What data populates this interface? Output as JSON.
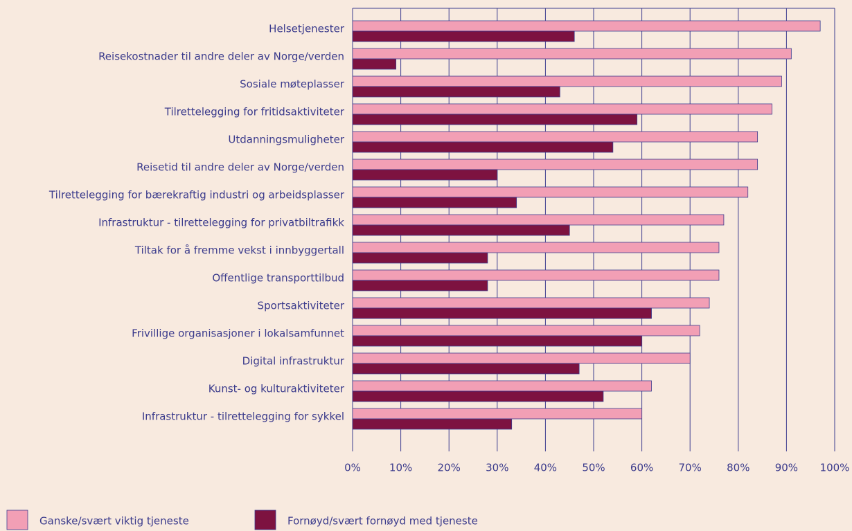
{
  "chart_data": {
    "type": "barh",
    "categories": [
      "Helsetjenester",
      "Reisekostnader til andre deler av Norge/verden",
      "Sosiale møteplasser",
      "Tilrettelegging for fritidsaktiviteter",
      "Utdanningsmuligheter",
      "Reisetid til andre deler av Norge/verden",
      "Tilrettelegging for bærekraftig industri og arbeidsplasser",
      "Infrastruktur - tilrettelegging for privatbiltrafikk",
      "Tiltak for å fremme vekst i innbyggertall",
      "Offentlige transporttilbud",
      "Sportsaktiviteter",
      "Frivillige organisasjoner i lokalsamfunnet",
      "Digital infrastruktur",
      "Kunst- og kulturaktiviteter",
      "Infrastruktur - tilrettelegging for sykkel"
    ],
    "series": [
      {
        "name": "Ganske/svært viktig tjeneste",
        "color": "#f29fb5",
        "values": [
          97,
          91,
          89,
          87,
          84,
          84,
          82,
          77,
          76,
          76,
          74,
          72,
          70,
          62,
          60
        ]
      },
      {
        "name": "Fornøyd/svært fornøyd med tjeneste",
        "color": "#7d1240",
        "values": [
          46,
          9,
          43,
          59,
          54,
          30,
          34,
          45,
          28,
          28,
          62,
          60,
          47,
          52,
          33
        ]
      }
    ],
    "xlim": [
      0,
      100
    ],
    "xticks": [
      {
        "value": 0,
        "label": "0%"
      },
      {
        "value": 10,
        "label": "10%"
      },
      {
        "value": 20,
        "label": "20%"
      },
      {
        "value": 30,
        "label": "30%"
      },
      {
        "value": 40,
        "label": "40%"
      },
      {
        "value": 50,
        "label": "50%"
      },
      {
        "value": 60,
        "label": "60%"
      },
      {
        "value": 70,
        "label": "70%"
      },
      {
        "value": 80,
        "label": "80%"
      },
      {
        "value": 90,
        "label": "90%"
      },
      {
        "value": 100,
        "label": "100%"
      }
    ],
    "grid": true,
    "legend": "bottom"
  }
}
